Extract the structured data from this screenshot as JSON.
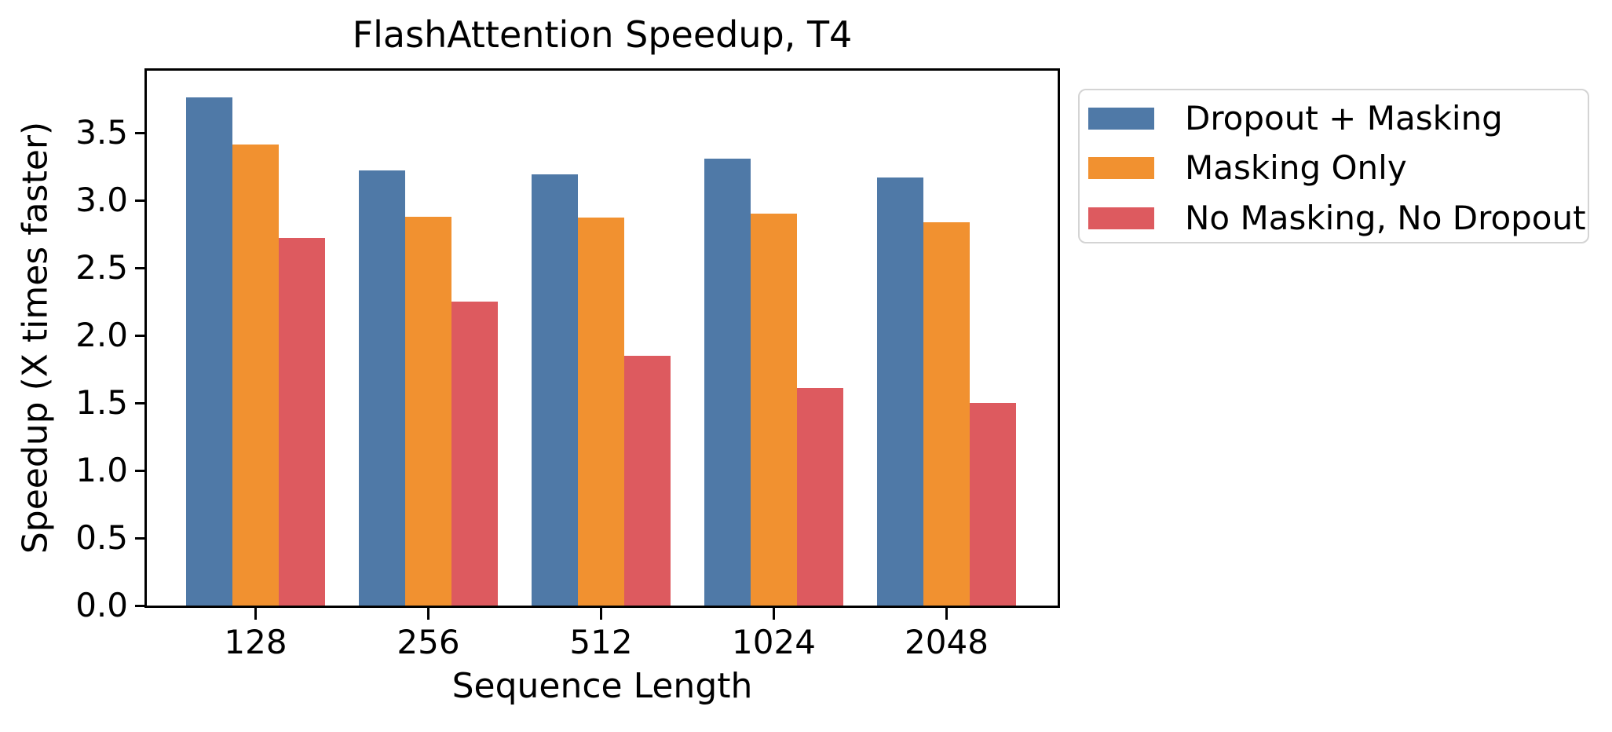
{
  "chart_data": {
    "type": "bar",
    "title": "FlashAttention Speedup, T4",
    "xlabel": "Sequence Length",
    "ylabel": "Speedup (X times faster)",
    "categories": [
      "128",
      "256",
      "512",
      "1024",
      "2048"
    ],
    "series": [
      {
        "name": "Dropout + Masking",
        "color": "#4f79a7",
        "values": [
          3.76,
          3.22,
          3.19,
          3.31,
          3.17
        ]
      },
      {
        "name": "Masking Only",
        "color": "#f19130",
        "values": [
          3.41,
          2.88,
          2.87,
          2.9,
          2.84
        ]
      },
      {
        "name": "No Masking, No Dropout",
        "color": "#dd5a5f",
        "values": [
          2.72,
          2.25,
          1.85,
          1.61,
          1.5
        ]
      }
    ],
    "ylim": [
      0,
      3.96
    ],
    "yticks": [
      "0.0",
      "0.5",
      "1.0",
      "1.5",
      "2.0",
      "2.5",
      "3.0",
      "3.5"
    ],
    "grid": false,
    "legend_position": "outside-upper-right",
    "axis_color": "#000000",
    "background_color": "#ffffff"
  }
}
